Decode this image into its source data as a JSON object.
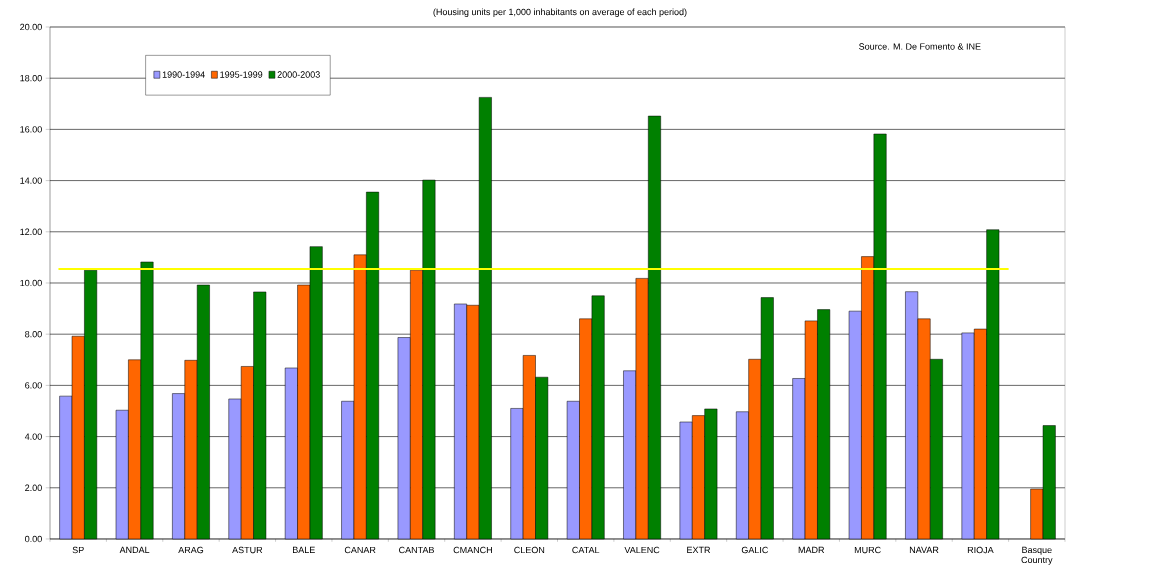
{
  "chart_data": {
    "type": "bar",
    "title": "(Housing units per 1,000 inhabitants on average of each period)",
    "annotations": [
      "Source. M. De Fomento &  INE"
    ],
    "categories": [
      "SP",
      "ANDAL",
      "ARAG",
      "ASTUR",
      "BALE",
      "CANAR",
      "CANTAB",
      "CMANCH",
      "CLEON",
      "CATAL",
      "VALENC",
      "EXTR",
      "GALIC",
      "MADR",
      "MURC",
      "NAVAR",
      "RIOJA",
      "Basque Country"
    ],
    "series": [
      {
        "name": "1990-1994",
        "color": "#9999ff",
        "values": [
          5.58,
          5.03,
          5.68,
          5.47,
          6.68,
          5.38,
          7.87,
          9.18,
          5.1,
          5.38,
          6.57,
          4.57,
          4.97,
          6.27,
          8.9,
          9.66,
          8.05,
          null
        ]
      },
      {
        "name": "1995-1999",
        "color": "#ff6600",
        "values": [
          7.92,
          7.0,
          6.98,
          6.74,
          9.92,
          11.1,
          10.5,
          9.13,
          7.17,
          8.6,
          10.18,
          4.82,
          7.02,
          8.52,
          11.03,
          8.6,
          8.2,
          1.95
        ]
      },
      {
        "name": "2000-2003",
        "color": "#008000",
        "values": [
          10.5,
          10.82,
          9.92,
          9.65,
          11.42,
          13.55,
          14.02,
          17.25,
          6.32,
          9.5,
          16.52,
          5.08,
          9.43,
          8.96,
          15.82,
          7.02,
          12.08,
          4.43
        ]
      }
    ],
    "ylim": [
      0,
      20
    ],
    "yticks": [
      {
        "value": 0,
        "label": "0.00"
      },
      {
        "value": 2,
        "label": "2.00"
      },
      {
        "value": 4,
        "label": "4.00"
      },
      {
        "value": 6,
        "label": "6.00"
      },
      {
        "value": 8,
        "label": "8.00"
      },
      {
        "value": 10,
        "label": "10.00"
      },
      {
        "value": 12,
        "label": "12.00"
      },
      {
        "value": 14,
        "label": "14.00"
      },
      {
        "value": 16,
        "label": "16.00"
      },
      {
        "value": 18,
        "label": "18.00"
      },
      {
        "value": 20,
        "label": "20.00"
      }
    ],
    "ref_lines": [
      {
        "axis": "y",
        "value": 10.55,
        "color": "#ffff00"
      }
    ],
    "grid": "y",
    "legend": "top left"
  }
}
